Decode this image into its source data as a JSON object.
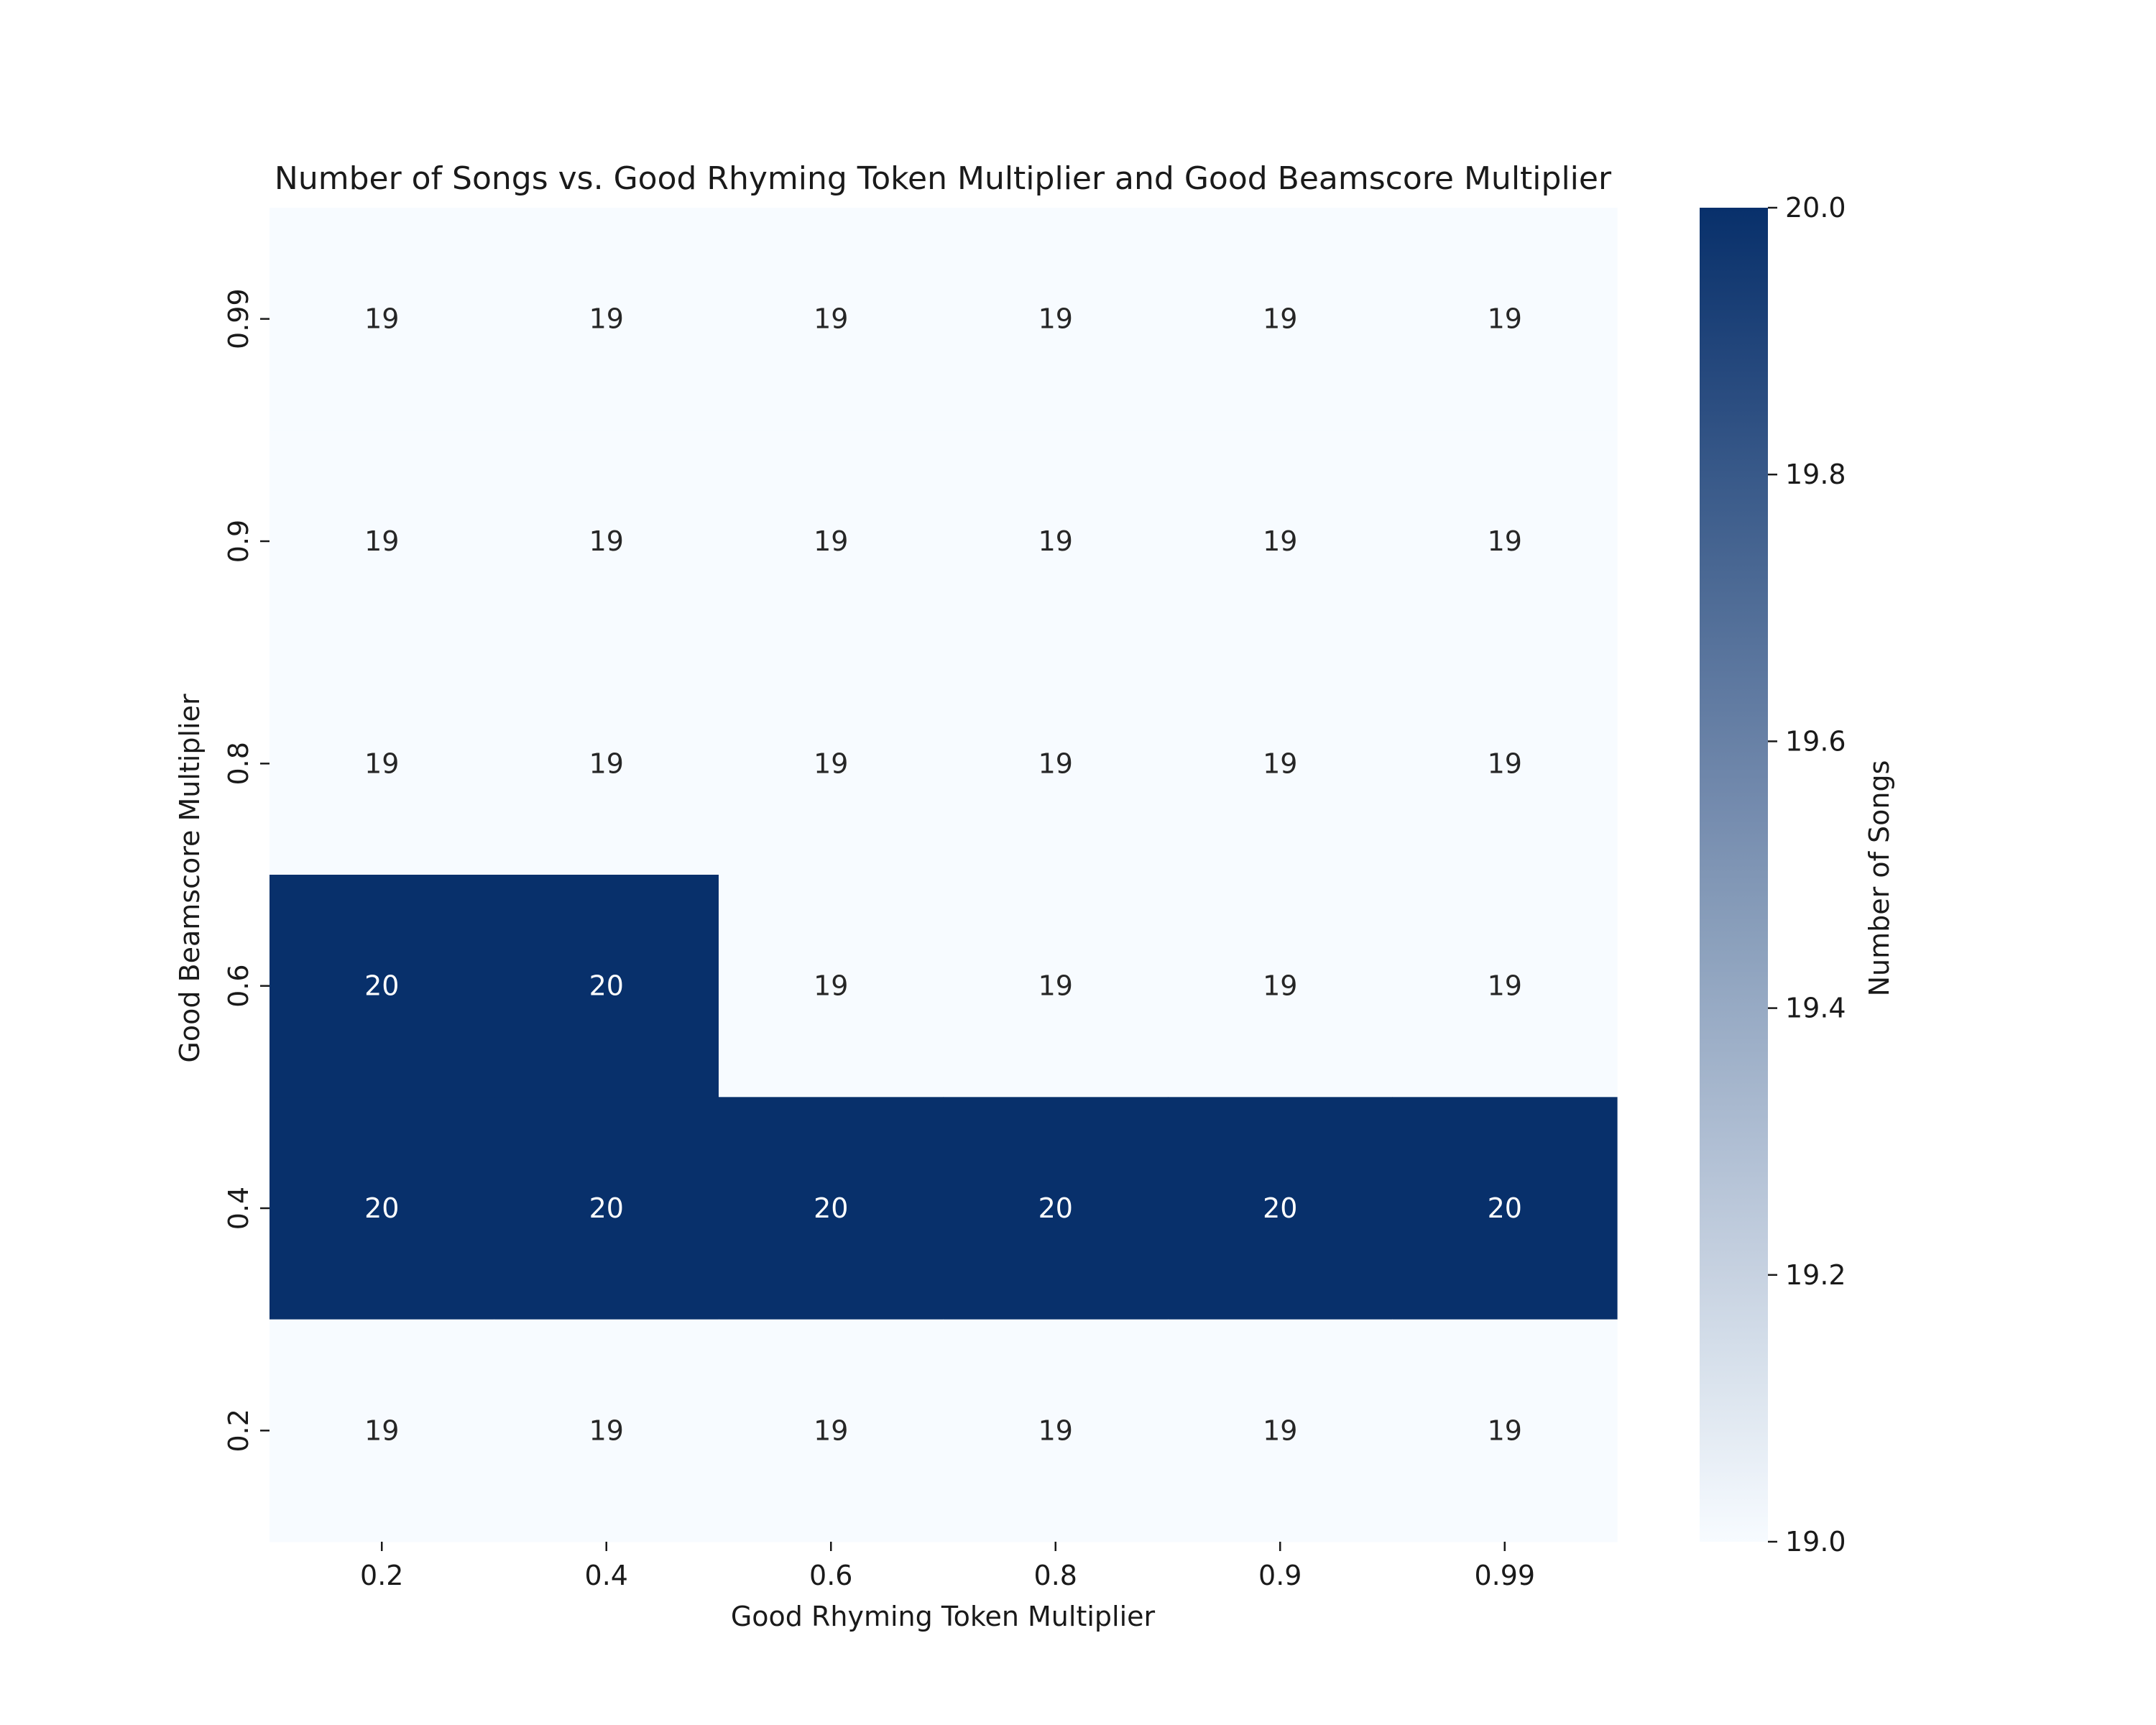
{
  "chart_data": {
    "type": "heatmap",
    "title": "Number of Songs vs. Good Rhyming Token Multiplier and Good Beamscore Multiplier",
    "xlabel": "Good Rhyming Token Multiplier",
    "ylabel": "Good Beamscore Multiplier",
    "x_categories": [
      "0.2",
      "0.4",
      "0.6",
      "0.8",
      "0.9",
      "0.99"
    ],
    "y_categories": [
      "0.99",
      "0.9",
      "0.8",
      "0.6",
      "0.4",
      "0.2"
    ],
    "values": [
      [
        19,
        19,
        19,
        19,
        19,
        19
      ],
      [
        19,
        19,
        19,
        19,
        19,
        19
      ],
      [
        19,
        19,
        19,
        19,
        19,
        19
      ],
      [
        20,
        20,
        19,
        19,
        19,
        19
      ],
      [
        20,
        20,
        20,
        20,
        20,
        20
      ],
      [
        19,
        19,
        19,
        19,
        19,
        19
      ]
    ],
    "colormap": "Blues",
    "color_low": "#f7fbff",
    "color_high": "#08306b",
    "annotation_color_low": "#262626",
    "annotation_color_high": "#ffffff",
    "colorbar": {
      "label": "Number of Songs",
      "range": [
        19.0,
        20.0
      ],
      "ticks": [
        "19.0",
        "19.2",
        "19.4",
        "19.6",
        "19.8",
        "20.0"
      ]
    },
    "legend": "none"
  }
}
